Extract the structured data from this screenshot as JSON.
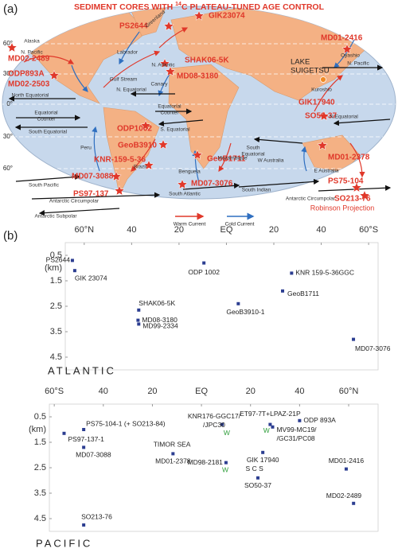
{
  "map": {
    "panel_label": "(a)",
    "title_pre": "SEDIMENT CORES  WITH ",
    "title_sup": "14",
    "title_post": "C PLATEAU-TUNED AGE CONTROL",
    "lat_labels": [
      "60°",
      "30°",
      "0°",
      "30°",
      "60°"
    ],
    "cores": [
      "PS2644",
      "GIK23074",
      "MD02-2489",
      "ODP893A",
      "MD02-2503",
      "SHAK06-5K",
      "MD08-3180",
      "MD01-2416",
      "GIK17940",
      "SO50-37",
      "ODP1002",
      "GeoB3910",
      "KNR-159-5-36",
      "GeoB1711",
      "MD07-3088",
      "MD07-3076",
      "PS97-137",
      "MD01-2378",
      "PS75-104",
      "SO213-76"
    ],
    "lake": [
      "LAKE",
      "SUIGETSU"
    ],
    "currents": [
      [
        "Alaska"
      ],
      [
        "N. Pacific"
      ],
      [
        "Labrador"
      ],
      [
        "Greenland"
      ],
      [
        "N. Atlantic"
      ],
      [
        "Gulf Stream"
      ],
      [
        "Canary"
      ],
      [
        "N. Equatorial"
      ],
      [
        "North Equatorial"
      ],
      [
        "Equatorial",
        "Counter"
      ],
      [
        "South Equatorial"
      ],
      [
        "Equatorial",
        "Counter"
      ],
      [
        "S. Equatorial"
      ],
      [
        "Peru"
      ],
      [
        "Brazil"
      ],
      [
        "Benguela"
      ],
      [
        "Mozambique"
      ],
      [
        "South Pacific"
      ],
      [
        "Antarctic Circumpolar"
      ],
      [
        "Antarctic Subpolar"
      ],
      [
        "South Atlantic"
      ],
      [
        "South Indian"
      ],
      [
        "W Australia"
      ],
      [
        "E Australia"
      ],
      [
        "South",
        "Equatorial"
      ],
      [
        "N.Equatorial"
      ],
      [
        "N. Pacific"
      ],
      [
        "Kuroshio"
      ],
      [
        "Oyashio"
      ],
      [
        "Antarctic Circumpolar"
      ]
    ],
    "projection": "Robinson Projection",
    "legend": [
      "Warm Current",
      "Cold Current"
    ]
  },
  "panel_b_label": "(b)",
  "chart_data": [
    {
      "type": "scatter",
      "region_label": "ATLANTIC",
      "ylabel": "(km)",
      "color": "#2c3e91",
      "xlim": [
        68,
        -64
      ],
      "xticks": [
        {
          "value": 60,
          "label": "60°N"
        },
        40,
        20,
        {
          "value": 0,
          "label": "EQ"
        },
        {
          "value": -20,
          "label": "20"
        },
        {
          "value": -40,
          "label": "40"
        },
        {
          "value": -60,
          "label": "60°S"
        }
      ],
      "ylim": [
        0,
        5
      ],
      "y_inverted": true,
      "yticks": [
        0.5,
        1.5,
        2.5,
        3.5,
        4.5
      ],
      "x": [
        65,
        64,
        9.5,
        -27.5,
        -23.7,
        -5,
        37,
        37.3,
        37,
        -53.6
      ],
      "values": [
        0.7,
        1.1,
        0.8,
        1.2,
        1.9,
        2.4,
        2.65,
        3.05,
        3.2,
        3.8
      ],
      "point_labels": [
        [
          "PS2644"
        ],
        [
          "GIK 23074"
        ],
        [
          "ODP 1002"
        ],
        [
          "KNR 159-5-36GGC"
        ],
        [
          "GeoB1711"
        ],
        [
          "GeoB3910-1"
        ],
        [
          "SHAK06-5K"
        ],
        [
          "MD08-3180"
        ],
        [
          "MD99-2334"
        ],
        [
          "MD07-3076"
        ]
      ],
      "annotations": []
    },
    {
      "type": "scatter",
      "region_label": "PACIFIC",
      "ylabel": "(km)",
      "color": "#2c3e91",
      "xlim": [
        -62,
        72
      ],
      "xticks": [
        {
          "value": -60,
          "label": "60°S"
        },
        {
          "value": -40,
          "label": "40"
        },
        {
          "value": -20,
          "label": "20"
        },
        {
          "value": 0,
          "label": "EQ"
        },
        20,
        40,
        {
          "value": 60,
          "label": "60°N"
        }
      ],
      "ylim": [
        0,
        5
      ],
      "y_inverted": true,
      "yticks": [
        0.5,
        1.5,
        2.5,
        3.5,
        4.5
      ],
      "x": [
        -48,
        -56,
        -48,
        -11.6,
        8.4,
        10,
        28,
        29,
        40,
        25,
        23,
        59,
        62,
        -48
      ],
      "values": [
        1.0,
        1.15,
        1.7,
        1.95,
        0.8,
        2.3,
        0.8,
        0.9,
        0.65,
        1.9,
        2.9,
        2.55,
        3.9,
        4.75
      ],
      "point_labels": [
        [
          "PS75-104-1 (+ SO213-84)"
        ],
        [
          "PS97-137-1"
        ],
        [
          "MD07-3088"
        ],
        [
          "MD01-2378"
        ],
        [
          "KNR176-GGC17/",
          "/JPC30"
        ],
        [
          "MD98-2181"
        ],
        [
          "ET97-7T+LPAZ-21P"
        ],
        [
          "MV99-MC19/",
          "/GC31/PC08"
        ],
        [
          "ODP 893A"
        ],
        [
          "GIK 17940"
        ],
        [
          "SO50-37"
        ],
        [
          "MD01-2416"
        ],
        [
          "MD02-2489"
        ],
        [
          "SO213-76"
        ]
      ],
      "annotations": [
        {
          "text": "TIMOR SEA",
          "x": -12,
          "y": 1.6
        },
        {
          "text": "W",
          "x": 10.3,
          "y": 1.15,
          "color": "#2e9e3a"
        },
        {
          "text": "W",
          "x": 9.7,
          "y": 2.6,
          "color": "#2e9e3a"
        },
        {
          "text": "W",
          "x": 26.5,
          "y": 1.05,
          "color": "#2e9e3a"
        },
        {
          "text": "S C S",
          "x": 21.6,
          "y": 2.55
        }
      ]
    }
  ]
}
